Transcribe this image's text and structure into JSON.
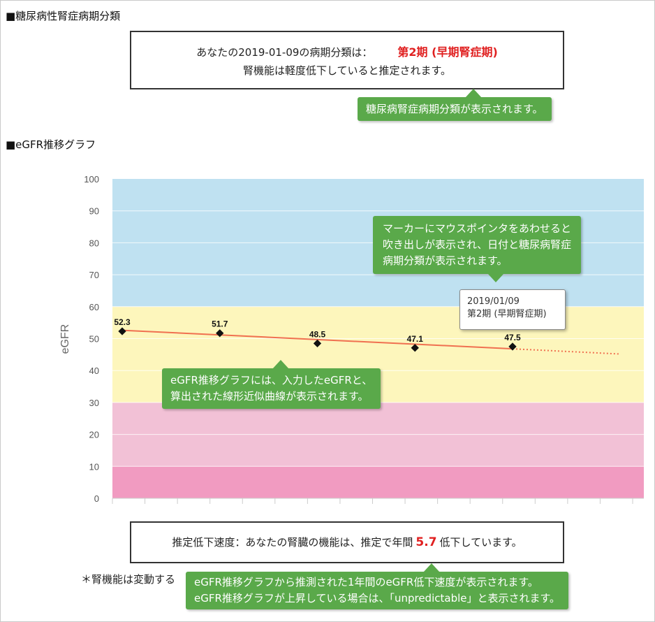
{
  "section1": {
    "title": "■糖尿病性腎症病期分類"
  },
  "result": {
    "line1_prefix": "あなたの2019-01-09の病期分類は：",
    "stage": "第2期 (早期腎症期)",
    "line2": "腎機能は軽度低下していると推定されます。"
  },
  "callouts": {
    "stage": "糖尿病腎症病期分類が表示されます。",
    "tooltip_line1": "マーカーにマウスポインタをあわせると",
    "tooltip_line2": "吹き出しが表示され、日付と糖尿病腎症",
    "tooltip_line3": "病期分類が表示されます。",
    "graph_line1": "eGFR推移グラフには、入力したeGFRと、",
    "graph_line2": "算出された線形近似曲線が表示されます。",
    "speed_line1": "eGFR推移グラフから推測された1年間のeGFR低下速度が表示されます。",
    "speed_line2": "eGFR推移グラフが上昇している場合は、「unpredictable」と表示されます。"
  },
  "section2": {
    "title": "■eGFR推移グラフ"
  },
  "chart_data": {
    "type": "line",
    "ylabel": "eGFR",
    "ylim": [
      0,
      100
    ],
    "yticks": [
      "0",
      "10",
      "20",
      "30",
      "40",
      "50",
      "60",
      "70",
      "80",
      "90",
      "100"
    ],
    "bands": [
      {
        "from": 60,
        "to": 100,
        "color": "#bfe1f1"
      },
      {
        "from": 30,
        "to": 60,
        "color": "#fdf6bc"
      },
      {
        "from": 10,
        "to": 30,
        "color": "#f2c1d6"
      },
      {
        "from": 0,
        "to": 10,
        "color": "#f19bc1"
      }
    ],
    "points": [
      {
        "label": "52.3",
        "y": 52.3
      },
      {
        "label": "51.7",
        "y": 51.7
      },
      {
        "label": "48.5",
        "y": 48.5
      },
      {
        "label": "47.1",
        "y": 47.1
      },
      {
        "label": "47.5",
        "y": 47.5
      }
    ],
    "trend": {
      "start": 52.6,
      "end_solid": 46.8,
      "end_dotted": 45.2
    },
    "colors": {
      "marker": "#111111",
      "trend": "#f07050"
    }
  },
  "tooltip": {
    "date": "2019/01/09",
    "stage": "第2期 (早期腎症期)"
  },
  "speed": {
    "prefix": "推定低下速度：あなたの腎臓の機能は、推定で年間",
    "value": "5.7",
    "suffix": "低下しています。"
  },
  "note": "＊腎機能は変動する"
}
